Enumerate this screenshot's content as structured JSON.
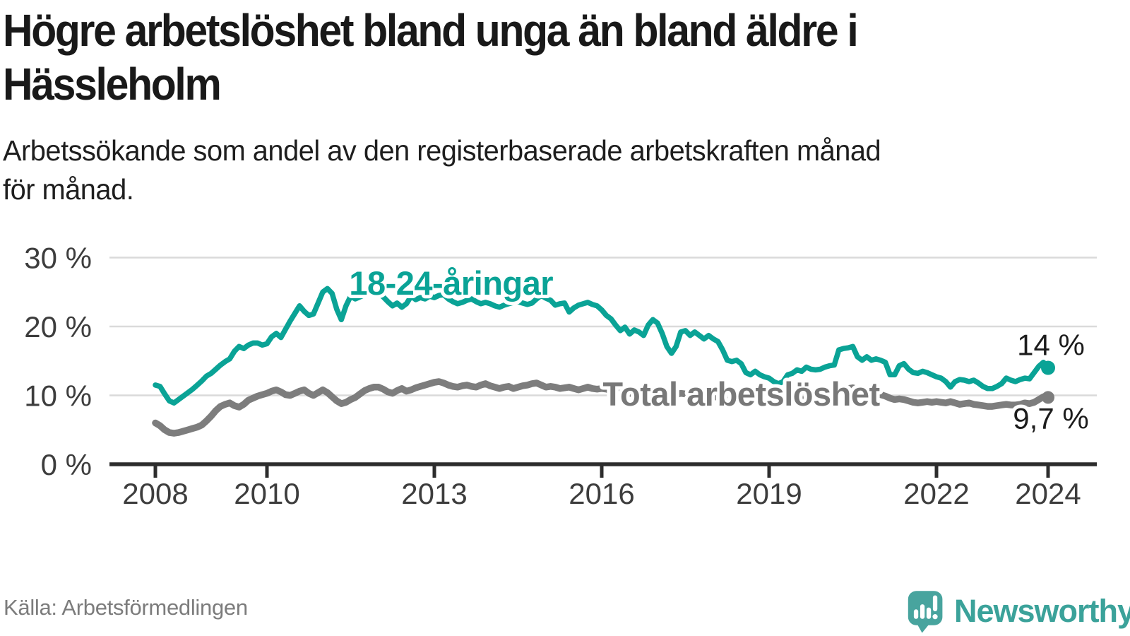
{
  "header": {
    "title": "Högre arbetslöshet bland unga än bland äldre i\nHässleholm",
    "subtitle": "Arbetssökande som andel av den registerbaserade arbetskraften månad\nför månad."
  },
  "footer": {
    "source": "Källa: Arbetsförmedlingen",
    "brand": "Newsworthy",
    "brand_color": "#3ba29a",
    "brand_icon": "newsworthy-speech-bubble-bar-chart-icon"
  },
  "chart_data": {
    "type": "line",
    "title": "Högre arbetslöshet bland unga än bland äldre i Hässleholm",
    "subtitle": "Arbetssökande som andel av den registerbaserade arbetskraften månad för månad.",
    "x_unit": "month",
    "x_range": [
      "2008-01",
      "2024-01"
    ],
    "x_start_year": 2008,
    "x_ticks": [
      2008,
      2010,
      2013,
      2016,
      2019,
      2022,
      2024
    ],
    "y_ticks": [
      0,
      10,
      20,
      30
    ],
    "y_tick_suffix": " %",
    "ylim": [
      0,
      31
    ],
    "grid": "horizontal-only",
    "legend_position": "inline-labels",
    "series": [
      {
        "id": "youth",
        "name": "18-24-åringar",
        "color": "#0aa396",
        "width": 7.5,
        "dot_radius": 10,
        "label": {
          "text": "18-24-åringar",
          "x": 2013.3,
          "y": 26.35
        },
        "label_color": "#0aa396",
        "end_label": "14 %",
        "end_label_position": "above",
        "values": [
          11.5,
          11.3,
          10.2,
          9.2,
          8.9,
          9.4,
          9.9,
          10.4,
          10.9,
          11.5,
          12.1,
          12.8,
          13.2,
          13.8,
          14.4,
          14.9,
          15.3,
          16.4,
          17.1,
          16.8,
          17.3,
          17.6,
          17.6,
          17.3,
          17.5,
          18.5,
          19.0,
          18.4,
          19.6,
          20.8,
          21.9,
          23.0,
          22.2,
          21.6,
          21.8,
          23.4,
          25.0,
          25.5,
          24.8,
          22.5,
          21.0,
          23.0,
          24.4,
          24.0,
          24.3,
          24.6,
          25.0,
          25.2,
          24.8,
          24.3,
          23.6,
          23.0,
          23.4,
          22.8,
          23.3,
          24.4,
          23.9,
          24.2,
          24.0,
          24.4,
          24.2,
          24.5,
          24.6,
          24.0,
          23.6,
          23.3,
          23.5,
          23.8,
          24.0,
          23.6,
          23.3,
          23.5,
          23.3,
          23.0,
          22.8,
          23.1,
          23.3,
          23.5,
          23.6,
          23.4,
          23.2,
          23.4,
          24.0,
          24.5,
          24.1,
          23.8,
          23.1,
          23.3,
          23.4,
          22.1,
          22.7,
          23.1,
          23.3,
          23.5,
          23.2,
          23.0,
          22.4,
          21.6,
          21.1,
          20.2,
          19.4,
          19.9,
          18.9,
          19.5,
          19.2,
          18.7,
          20.2,
          21.0,
          20.5,
          19.0,
          17.1,
          16.1,
          17.1,
          19.2,
          19.4,
          18.7,
          19.2,
          18.7,
          18.2,
          18.7,
          18.2,
          17.8,
          16.6,
          15.1,
          14.9,
          15.1,
          14.6,
          13.3,
          13.0,
          13.5,
          13.0,
          12.7,
          12.5,
          12.0,
          11.7,
          12.0,
          13.0,
          13.2,
          13.7,
          13.5,
          14.1,
          13.8,
          13.7,
          13.8,
          14.1,
          14.3,
          14.4,
          16.6,
          16.8,
          16.9,
          17.1,
          15.6,
          15.1,
          15.6,
          15.1,
          15.3,
          15.1,
          14.8,
          13.0,
          13.0,
          14.3,
          14.6,
          13.8,
          13.3,
          13.2,
          13.5,
          13.3,
          13.0,
          12.7,
          12.5,
          12.0,
          11.2,
          12.0,
          12.3,
          12.2,
          12.0,
          12.2,
          11.8,
          11.3,
          11.0,
          11.0,
          11.3,
          11.7,
          12.5,
          12.2,
          12.0,
          12.3,
          12.5,
          12.4,
          13.3,
          14.2,
          14.8,
          14.0
        ]
      },
      {
        "id": "total",
        "name": "Total arbetslöshet",
        "color": "#7d7d7d",
        "width": 9.5,
        "dot_radius": 9,
        "label": {
          "text": "Total arbetslöshet",
          "x": 2018.5,
          "y": 10.25
        },
        "label_color": "#787878",
        "end_label": "9,7 %",
        "end_label_position": "below",
        "values": [
          6.0,
          5.6,
          5.0,
          4.6,
          4.5,
          4.6,
          4.8,
          5.0,
          5.2,
          5.4,
          5.7,
          6.3,
          7.0,
          7.8,
          8.4,
          8.7,
          8.9,
          8.5,
          8.3,
          8.7,
          9.3,
          9.6,
          9.9,
          10.1,
          10.3,
          10.6,
          10.8,
          10.5,
          10.1,
          10.0,
          10.3,
          10.6,
          10.8,
          10.3,
          10.0,
          10.4,
          10.8,
          10.4,
          9.8,
          9.2,
          8.8,
          9.0,
          9.4,
          9.7,
          10.2,
          10.7,
          11.0,
          11.2,
          11.2,
          10.9,
          10.5,
          10.3,
          10.7,
          11.0,
          10.6,
          10.8,
          11.1,
          11.3,
          11.5,
          11.7,
          11.9,
          12.0,
          11.8,
          11.5,
          11.3,
          11.2,
          11.4,
          11.5,
          11.3,
          11.2,
          11.5,
          11.7,
          11.4,
          11.2,
          11.0,
          11.2,
          11.3,
          11.0,
          11.2,
          11.4,
          11.5,
          11.7,
          11.8,
          11.5,
          11.2,
          11.3,
          11.2,
          11.0,
          11.1,
          11.2,
          11.0,
          10.8,
          11.0,
          11.2,
          11.0,
          10.9,
          11.0,
          10.9,
          10.7,
          10.5,
          10.4,
          10.5,
          10.3,
          10.2,
          10.3,
          10.4,
          10.5,
          10.6,
          10.5,
          10.3,
          10.1,
          10.0,
          10.1,
          10.3,
          10.2,
          10.0,
          10.1,
          10.0,
          9.9,
          10.0,
          9.9,
          9.7,
          9.5,
          9.3,
          9.2,
          9.4,
          9.3,
          9.1,
          9.0,
          9.2,
          9.1,
          9.0,
          9.1,
          9.0,
          8.9,
          9.0,
          9.2,
          9.3,
          9.5,
          9.4,
          9.3,
          9.4,
          9.3,
          9.4,
          9.5,
          9.6,
          9.8,
          10.4,
          10.8,
          11.0,
          11.1,
          10.9,
          10.7,
          10.6,
          10.4,
          10.3,
          10.1,
          9.9,
          9.6,
          9.4,
          9.5,
          9.4,
          9.2,
          9.0,
          8.9,
          9.0,
          9.1,
          9.0,
          9.1,
          9.0,
          8.9,
          9.1,
          8.9,
          8.7,
          8.8,
          8.9,
          8.7,
          8.6,
          8.5,
          8.4,
          8.4,
          8.5,
          8.6,
          8.7,
          8.6,
          8.6,
          8.7,
          8.9,
          8.8,
          9.0,
          9.4,
          9.8,
          9.7
        ]
      }
    ]
  }
}
